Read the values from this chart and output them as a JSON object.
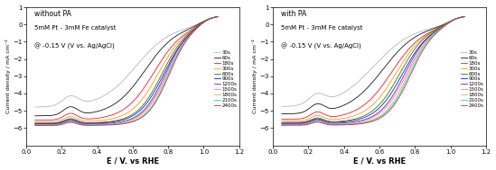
{
  "title_left": "without PA",
  "title_right": "with PA",
  "subtitle": "5mM Pt - 3mM Fe catalyst",
  "annotation": "@ -0.15 V (V vs. Ag/AgCl)",
  "xlabel": "E / V. vs RHE",
  "ylabel_left": "Current density / mA cm⁻²",
  "ylabel_right": "Current density / mA cm⁻²",
  "xlim": [
    0.0,
    1.2
  ],
  "ylim": [
    -7,
    1
  ],
  "yticks": [
    -6,
    -5,
    -4,
    -3,
    -2,
    -1,
    0,
    1
  ],
  "xticks": [
    0.0,
    0.2,
    0.4,
    0.6,
    0.8,
    1.0,
    1.2
  ],
  "legend_labels": [
    "30s",
    "60s",
    "180s",
    "300s",
    "600s",
    "900s",
    "1200s",
    "1500s",
    "1800s",
    "2100s",
    "2400s"
  ],
  "line_colors": [
    "#b0b0b0",
    "#000000",
    "#ff0000",
    "#ff8c00",
    "#008000",
    "#0000ff",
    "#800080",
    "#ff69b4",
    "#9acd32",
    "#00ced1",
    "#dc143c"
  ],
  "background_color": "#ffffff",
  "left_params": [
    [
      -4.8,
      0.62,
      10,
      -5.85,
      0.25,
      0.55,
      0.045
    ],
    [
      -5.3,
      0.67,
      11,
      -5.9,
      0.25,
      0.48,
      0.04
    ],
    [
      -5.55,
      0.72,
      12,
      -5.95,
      0.25,
      0.38,
      0.038
    ],
    [
      -5.65,
      0.745,
      13,
      -6.0,
      0.25,
      0.3,
      0.036
    ],
    [
      -5.72,
      0.765,
      14,
      -6.0,
      0.25,
      0.26,
      0.035
    ],
    [
      -5.75,
      0.775,
      14,
      -6.0,
      0.25,
      0.24,
      0.034
    ],
    [
      -5.78,
      0.783,
      15,
      -6.0,
      0.25,
      0.22,
      0.033
    ],
    [
      -5.8,
      0.79,
      15,
      -6.0,
      0.25,
      0.21,
      0.033
    ],
    [
      -5.82,
      0.795,
      15,
      -6.0,
      0.25,
      0.2,
      0.032
    ],
    [
      -5.83,
      0.8,
      16,
      -6.0,
      0.25,
      0.19,
      0.032
    ],
    [
      -5.85,
      0.805,
      16,
      -6.0,
      0.25,
      0.18,
      0.032
    ]
  ],
  "right_params": [
    [
      -4.8,
      0.57,
      9,
      -5.85,
      0.25,
      0.55,
      0.045
    ],
    [
      -5.2,
      0.62,
      10,
      -5.88,
      0.25,
      0.48,
      0.04
    ],
    [
      -5.5,
      0.67,
      11,
      -5.92,
      0.25,
      0.38,
      0.038
    ],
    [
      -5.6,
      0.695,
      12,
      -5.95,
      0.25,
      0.3,
      0.036
    ],
    [
      -5.68,
      0.715,
      13,
      -5.97,
      0.25,
      0.26,
      0.035
    ],
    [
      -5.72,
      0.73,
      13,
      -5.97,
      0.25,
      0.24,
      0.034
    ],
    [
      -5.75,
      0.742,
      14,
      -5.97,
      0.25,
      0.22,
      0.033
    ],
    [
      -5.78,
      0.752,
      14,
      -5.97,
      0.25,
      0.21,
      0.033
    ],
    [
      -5.8,
      0.76,
      15,
      -5.97,
      0.25,
      0.2,
      0.032
    ],
    [
      -5.82,
      0.768,
      15,
      -5.97,
      0.25,
      0.19,
      0.032
    ],
    [
      -5.84,
      0.775,
      15,
      -5.97,
      0.25,
      0.18,
      0.032
    ]
  ]
}
